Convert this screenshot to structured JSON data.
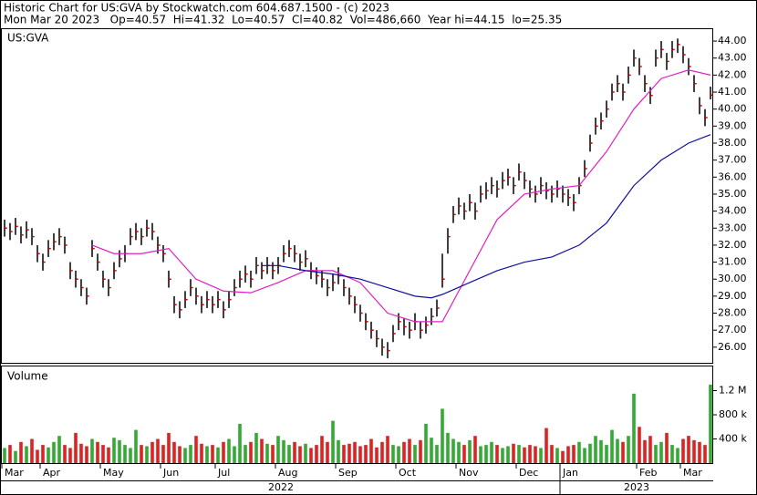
{
  "chart_data": {
    "type": "ohlc",
    "title": "Historic Chart for US:GVA by Stockwatch.com 604.687.1500 - (c) 2023",
    "subtitle": "Mon Mar 20 2023   Op=40.57  Hi=41.32  Lo=40.57  Cl=40.82  Vol=486,660  Year hi=44.15  lo=25.35",
    "symbol_label": "US:GVA",
    "volume_label": "Volume",
    "xlim": [
      0,
      130
    ],
    "xticks": [
      {
        "value": 0,
        "label": "Mar"
      },
      {
        "value": 7,
        "label": "Apr"
      },
      {
        "value": 18,
        "label": "May"
      },
      {
        "value": 29,
        "label": "Jun"
      },
      {
        "value": 39,
        "label": "Jul"
      },
      {
        "value": 50,
        "label": "Aug"
      },
      {
        "value": 61,
        "label": "Sep"
      },
      {
        "value": 72,
        "label": "Oct"
      },
      {
        "value": 83,
        "label": "Nov"
      },
      {
        "value": 94,
        "label": "Dec"
      },
      {
        "value": 102,
        "label": "Jan"
      },
      {
        "value": 116,
        "label": "Feb"
      },
      {
        "value": 124,
        "label": "Mar"
      }
    ],
    "years": [
      {
        "value": 0,
        "label": "2022"
      },
      {
        "value": 102,
        "label": "2023"
      }
    ],
    "ylim": [
      25.08,
      44.7
    ],
    "yticks": [
      {
        "value": 26,
        "label": "26.00"
      },
      {
        "value": 27,
        "label": "27.00"
      },
      {
        "value": 28,
        "label": "28.00"
      },
      {
        "value": 29,
        "label": "29.00"
      },
      {
        "value": 30,
        "label": "30.00"
      },
      {
        "value": 31,
        "label": "31.00"
      },
      {
        "value": 32,
        "label": "32.00"
      },
      {
        "value": 33,
        "label": "33.00"
      },
      {
        "value": 34,
        "label": "34.00"
      },
      {
        "value": 35,
        "label": "35.00"
      },
      {
        "value": 36,
        "label": "36.00"
      },
      {
        "value": 37,
        "label": "37.00"
      },
      {
        "value": 38,
        "label": "38.00"
      },
      {
        "value": 39,
        "label": "39.00"
      },
      {
        "value": 40,
        "label": "40.00"
      },
      {
        "value": 41,
        "label": "41.00"
      },
      {
        "value": 42,
        "label": "42.00"
      },
      {
        "value": 43,
        "label": "43.00"
      },
      {
        "value": 44,
        "label": "44.00"
      }
    ],
    "bar_color": "#000000",
    "close_color": "#cc0000",
    "high": [
      33.5,
      33.3,
      33.6,
      33.1,
      33.4,
      33.0,
      32.0,
      31.5,
      32.3,
      32.7,
      33.0,
      32.5,
      31.0,
      30.5,
      30.0,
      29.5,
      32.3,
      31.5,
      30.5,
      30.0,
      31.0,
      31.7,
      32.0,
      33.0,
      33.3,
      33.0,
      33.5,
      33.3,
      32.5,
      32.0,
      30.5,
      29.0,
      28.7,
      29.3,
      30.0,
      29.5,
      29.0,
      29.3,
      29.0,
      29.3,
      28.7,
      29.3,
      30.0,
      30.5,
      30.8,
      30.5,
      31.3,
      31.0,
      31.3,
      31.0,
      31.3,
      32.0,
      32.3,
      32.0,
      31.5,
      31.7,
      31.0,
      30.7,
      30.5,
      30.0,
      30.3,
      30.7,
      30.0,
      29.5,
      29.0,
      28.5,
      28.0,
      27.5,
      27.0,
      26.5,
      26.3,
      27.3,
      28.0,
      27.7,
      27.5,
      28.0,
      27.5,
      27.8,
      28.3,
      28.8,
      31.5,
      33.0,
      34.3,
      34.8,
      34.5,
      35.0,
      34.5,
      35.5,
      35.7,
      36.0,
      35.8,
      36.3,
      36.5,
      36.0,
      36.8,
      36.3,
      35.8,
      35.5,
      36.0,
      35.7,
      35.5,
      35.8,
      35.5,
      35.3,
      35.0,
      36.0,
      37.0,
      38.5,
      39.5,
      39.8,
      40.5,
      41.5,
      42.0,
      41.5,
      42.5,
      43.5,
      43.0,
      42.0,
      41.3,
      43.5,
      44.0,
      43.3,
      44.0,
      44.15,
      43.7,
      43.0,
      42.0,
      40.7,
      40.0,
      41.32
    ],
    "low": [
      32.5,
      32.3,
      32.6,
      32.1,
      32.4,
      32.0,
      31.0,
      30.5,
      31.3,
      31.7,
      32.0,
      31.5,
      30.0,
      29.5,
      29.0,
      28.5,
      31.3,
      30.5,
      29.5,
      29.0,
      30.0,
      30.7,
      31.0,
      32.0,
      32.3,
      32.0,
      32.5,
      32.3,
      31.5,
      31.0,
      29.5,
      28.0,
      27.7,
      28.3,
      29.0,
      28.5,
      28.0,
      28.3,
      28.0,
      28.3,
      27.7,
      28.3,
      29.0,
      29.5,
      29.8,
      29.5,
      30.3,
      30.0,
      30.3,
      30.0,
      30.3,
      31.0,
      31.3,
      31.0,
      30.5,
      30.7,
      30.0,
      29.7,
      29.5,
      29.0,
      29.3,
      29.7,
      29.0,
      28.5,
      28.0,
      27.5,
      27.0,
      26.5,
      26.0,
      25.5,
      25.35,
      26.3,
      27.0,
      26.7,
      26.5,
      27.0,
      26.5,
      26.8,
      27.3,
      27.8,
      29.5,
      31.5,
      33.3,
      33.8,
      33.5,
      34.0,
      33.5,
      34.5,
      34.7,
      35.0,
      34.8,
      35.3,
      35.5,
      35.0,
      35.8,
      35.3,
      34.8,
      34.5,
      35.0,
      34.7,
      34.5,
      34.8,
      34.5,
      34.3,
      34.0,
      35.0,
      36.0,
      37.5,
      38.5,
      38.8,
      39.5,
      40.5,
      41.0,
      40.5,
      41.5,
      42.5,
      42.0,
      41.0,
      40.3,
      42.5,
      43.0,
      42.3,
      43.0,
      43.3,
      42.7,
      42.0,
      41.0,
      39.7,
      39.0,
      40.57
    ],
    "close": [
      33.0,
      32.8,
      33.1,
      32.6,
      32.9,
      32.5,
      31.5,
      31.0,
      31.8,
      32.2,
      32.5,
      32.0,
      30.5,
      30.0,
      29.5,
      29.0,
      31.8,
      31.0,
      30.0,
      29.5,
      30.5,
      31.2,
      31.5,
      32.5,
      32.8,
      32.5,
      33.0,
      32.8,
      32.0,
      31.5,
      30.0,
      28.5,
      28.2,
      28.8,
      29.5,
      29.0,
      28.5,
      28.8,
      28.5,
      28.8,
      28.2,
      28.8,
      29.5,
      30.0,
      30.3,
      30.0,
      30.8,
      30.5,
      30.8,
      30.5,
      30.8,
      31.5,
      31.8,
      31.5,
      31.0,
      31.2,
      30.5,
      30.2,
      30.0,
      29.5,
      29.8,
      30.2,
      29.5,
      29.0,
      28.5,
      28.0,
      27.5,
      27.0,
      26.5,
      26.0,
      25.8,
      26.8,
      27.5,
      27.2,
      27.0,
      27.5,
      27.0,
      27.3,
      27.8,
      28.3,
      30.0,
      32.5,
      33.8,
      34.3,
      34.0,
      34.5,
      34.0,
      35.0,
      35.2,
      35.5,
      35.3,
      35.8,
      36.0,
      35.5,
      36.3,
      35.8,
      35.3,
      35.0,
      35.5,
      35.2,
      35.0,
      35.3,
      35.0,
      34.8,
      34.5,
      35.5,
      36.5,
      38.0,
      39.0,
      39.3,
      40.0,
      41.0,
      41.5,
      41.0,
      42.0,
      43.0,
      42.5,
      41.5,
      40.8,
      43.0,
      43.5,
      42.8,
      43.5,
      43.8,
      43.2,
      42.5,
      41.5,
      40.2,
      39.5,
      40.82
    ],
    "averages": [
      {
        "color": "#e020c0",
        "x": [
          16,
          20,
          25,
          30,
          35,
          40,
          45,
          50,
          55,
          60,
          65,
          70,
          75,
          80,
          85,
          90,
          95,
          100,
          105,
          110,
          115,
          120,
          125,
          129
        ],
        "values": [
          32.0,
          31.5,
          31.5,
          31.8,
          30.0,
          29.3,
          29.2,
          29.8,
          30.5,
          30.5,
          29.8,
          28.0,
          27.5,
          27.5,
          30.5,
          33.5,
          35.0,
          35.3,
          35.5,
          37.5,
          40.0,
          41.8,
          42.3,
          42.0
        ]
      },
      {
        "color": "#1010a0",
        "x": [
          47,
          50,
          55,
          60,
          65,
          70,
          75,
          78,
          80,
          85,
          90,
          95,
          100,
          105,
          110,
          115,
          120,
          125,
          129
        ],
        "values": [
          30.8,
          30.8,
          30.5,
          30.3,
          30.0,
          29.5,
          29.0,
          28.9,
          29.1,
          29.8,
          30.5,
          31.0,
          31.3,
          32.0,
          33.3,
          35.5,
          37.0,
          38.0,
          38.5
        ]
      }
    ],
    "volume": {
      "ylim": [
        0,
        1600000
      ],
      "yticks": [
        {
          "value": 400000,
          "label": "400 k"
        },
        {
          "value": 800000,
          "label": "800 k"
        },
        {
          "value": 1200000,
          "label": "1.2 M"
        }
      ],
      "up_color": "#33aa33",
      "down_color": "#dd2222",
      "values": [
        250000,
        300000,
        200000,
        350000,
        280000,
        400000,
        220000,
        300000,
        260000,
        350000,
        450000,
        300000,
        250000,
        500000,
        320000,
        280000,
        400000,
        350000,
        300000,
        260000,
        420000,
        380000,
        300000,
        250000,
        550000,
        300000,
        280000,
        350000,
        400000,
        300000,
        500000,
        350000,
        280000,
        250000,
        300000,
        450000,
        320000,
        280000,
        300000,
        260000,
        350000,
        400000,
        280000,
        650000,
        300000,
        350000,
        500000,
        400000,
        320000,
        300000,
        450000,
        380000,
        300000,
        350000,
        280000,
        320000,
        250000,
        300000,
        450000,
        350000,
        700000,
        380000,
        300000,
        320000,
        350000,
        280000,
        300000,
        400000,
        260000,
        350000,
        450000,
        300000,
        280000,
        350000,
        400000,
        300000,
        380000,
        650000,
        420000,
        300000,
        900000,
        500000,
        400000,
        350000,
        300000,
        380000,
        450000,
        280000,
        300000,
        350000,
        300000,
        250000,
        280000,
        320000,
        300000,
        260000,
        300000,
        280000,
        250000,
        580000,
        300000,
        250000,
        200000,
        280000,
        300000,
        350000,
        250000,
        320000,
        450000,
        380000,
        300000,
        550000,
        400000,
        350000,
        450000,
        1150000,
        600000,
        380000,
        450000,
        300000,
        350000,
        500000,
        300000,
        250000,
        400000,
        450000,
        380000,
        350000,
        300000,
        1300000
      ]
    }
  }
}
